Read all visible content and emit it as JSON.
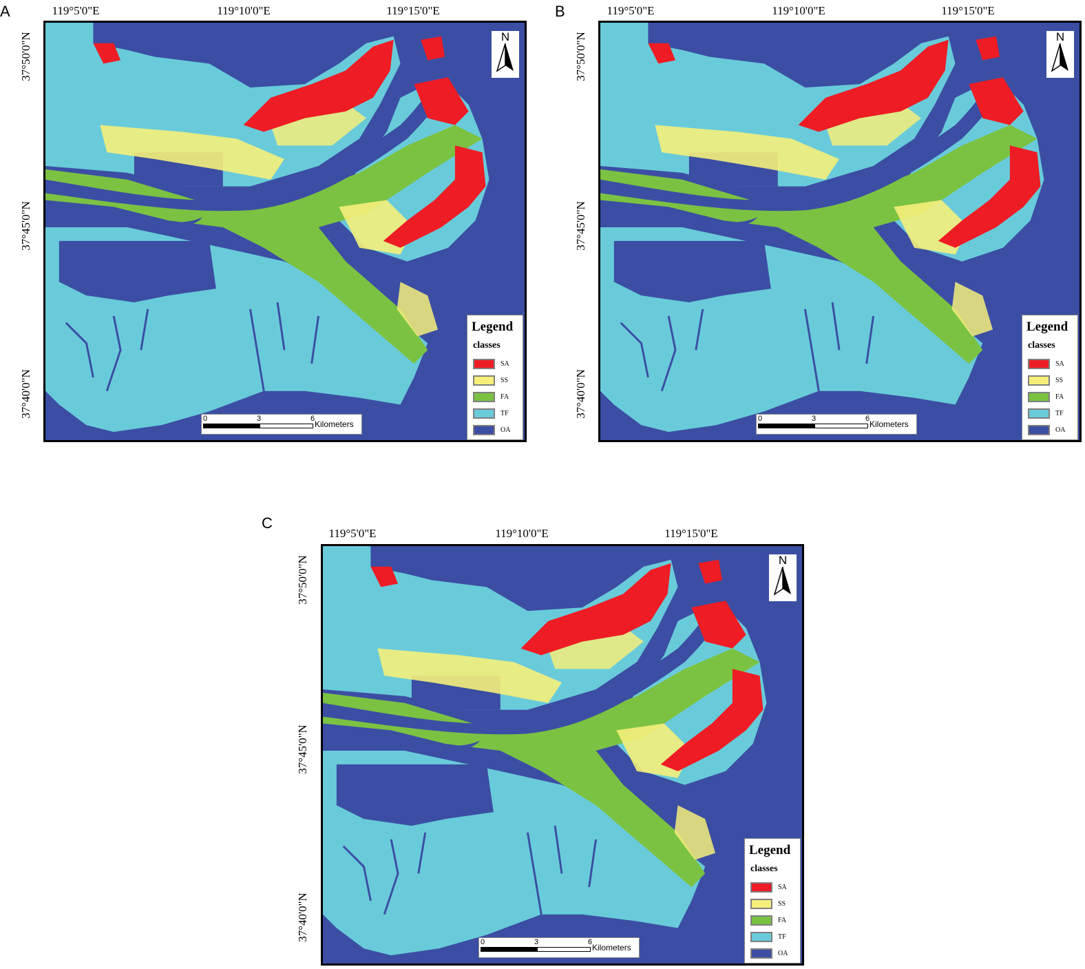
{
  "panels": [
    {
      "id": "A",
      "letter": "A"
    },
    {
      "id": "B",
      "letter": "B"
    },
    {
      "id": "C",
      "letter": "C"
    }
  ],
  "longitude_labels": [
    "119°5'0\"E",
    "119°10'0\"E",
    "119°15'0\"E"
  ],
  "latitude_labels": [
    "37°50'0\"N",
    "37°45'0\"N",
    "37°40'0\"N"
  ],
  "north_arrow": {
    "letter": "N"
  },
  "legend": {
    "title": "Legend",
    "subtitle": "classes",
    "items": [
      {
        "label": "SA",
        "color": "#ee1c24"
      },
      {
        "label": "SS",
        "color": "#f5ef7a"
      },
      {
        "label": "FA",
        "color": "#7cc242"
      },
      {
        "label": "TF",
        "color": "#69cbda"
      },
      {
        "label": "OA",
        "color": "#3b4ea3"
      }
    ]
  },
  "scalebar": {
    "ticks": [
      "0",
      "3",
      "6"
    ],
    "unit": "Kilometers"
  },
  "colors": {
    "water": "#3b4ea3",
    "tidal_flat": "#69cbda",
    "fa": "#7cc242",
    "ss": "#f5ef7a",
    "sa": "#ee1c24"
  }
}
